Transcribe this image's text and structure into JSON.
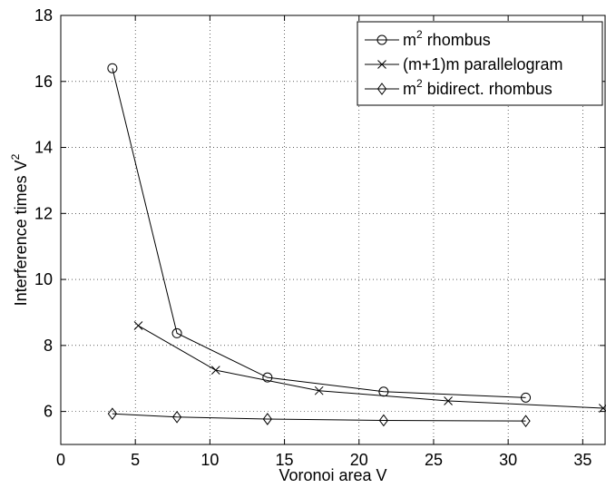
{
  "chart_data": {
    "type": "line",
    "xlabel": "Voronoi area V",
    "ylabel_main": "Interference times V",
    "ylabel_sup": "2",
    "xlim": [
      0,
      36.5
    ],
    "ylim": [
      5,
      18
    ],
    "x_ticks": [
      0,
      5,
      10,
      15,
      20,
      25,
      30,
      35
    ],
    "y_ticks": [
      6,
      8,
      10,
      12,
      14,
      16,
      18
    ],
    "x_tick_labels": [
      "0",
      "5",
      "10",
      "15",
      "20",
      "25",
      "30",
      "35"
    ],
    "y_tick_labels": [
      "6",
      "8",
      "10",
      "12",
      "14",
      "16",
      "18"
    ],
    "grid": true,
    "legend_position": "top-right",
    "series": [
      {
        "legend_pre": "m",
        "legend_sup": "2",
        "legend_post": " rhombus",
        "marker": "circle",
        "x": [
          3.46,
          7.79,
          13.86,
          21.65,
          31.18
        ],
        "y": [
          16.4,
          8.37,
          7.03,
          6.6,
          6.42
        ]
      },
      {
        "legend_pre": "(m+1)m parallelogram",
        "legend_sup": "",
        "legend_post": "",
        "marker": "x",
        "x": [
          5.2,
          10.39,
          17.32,
          25.98,
          36.37
        ],
        "y": [
          8.6,
          7.25,
          6.63,
          6.32,
          6.1
        ]
      },
      {
        "legend_pre": "m",
        "legend_sup": "2",
        "legend_post": " bidirect. rhombus",
        "marker": "diamond",
        "x": [
          3.46,
          7.79,
          13.86,
          21.65,
          31.18
        ],
        "y": [
          5.93,
          5.83,
          5.77,
          5.73,
          5.71
        ]
      }
    ]
  }
}
